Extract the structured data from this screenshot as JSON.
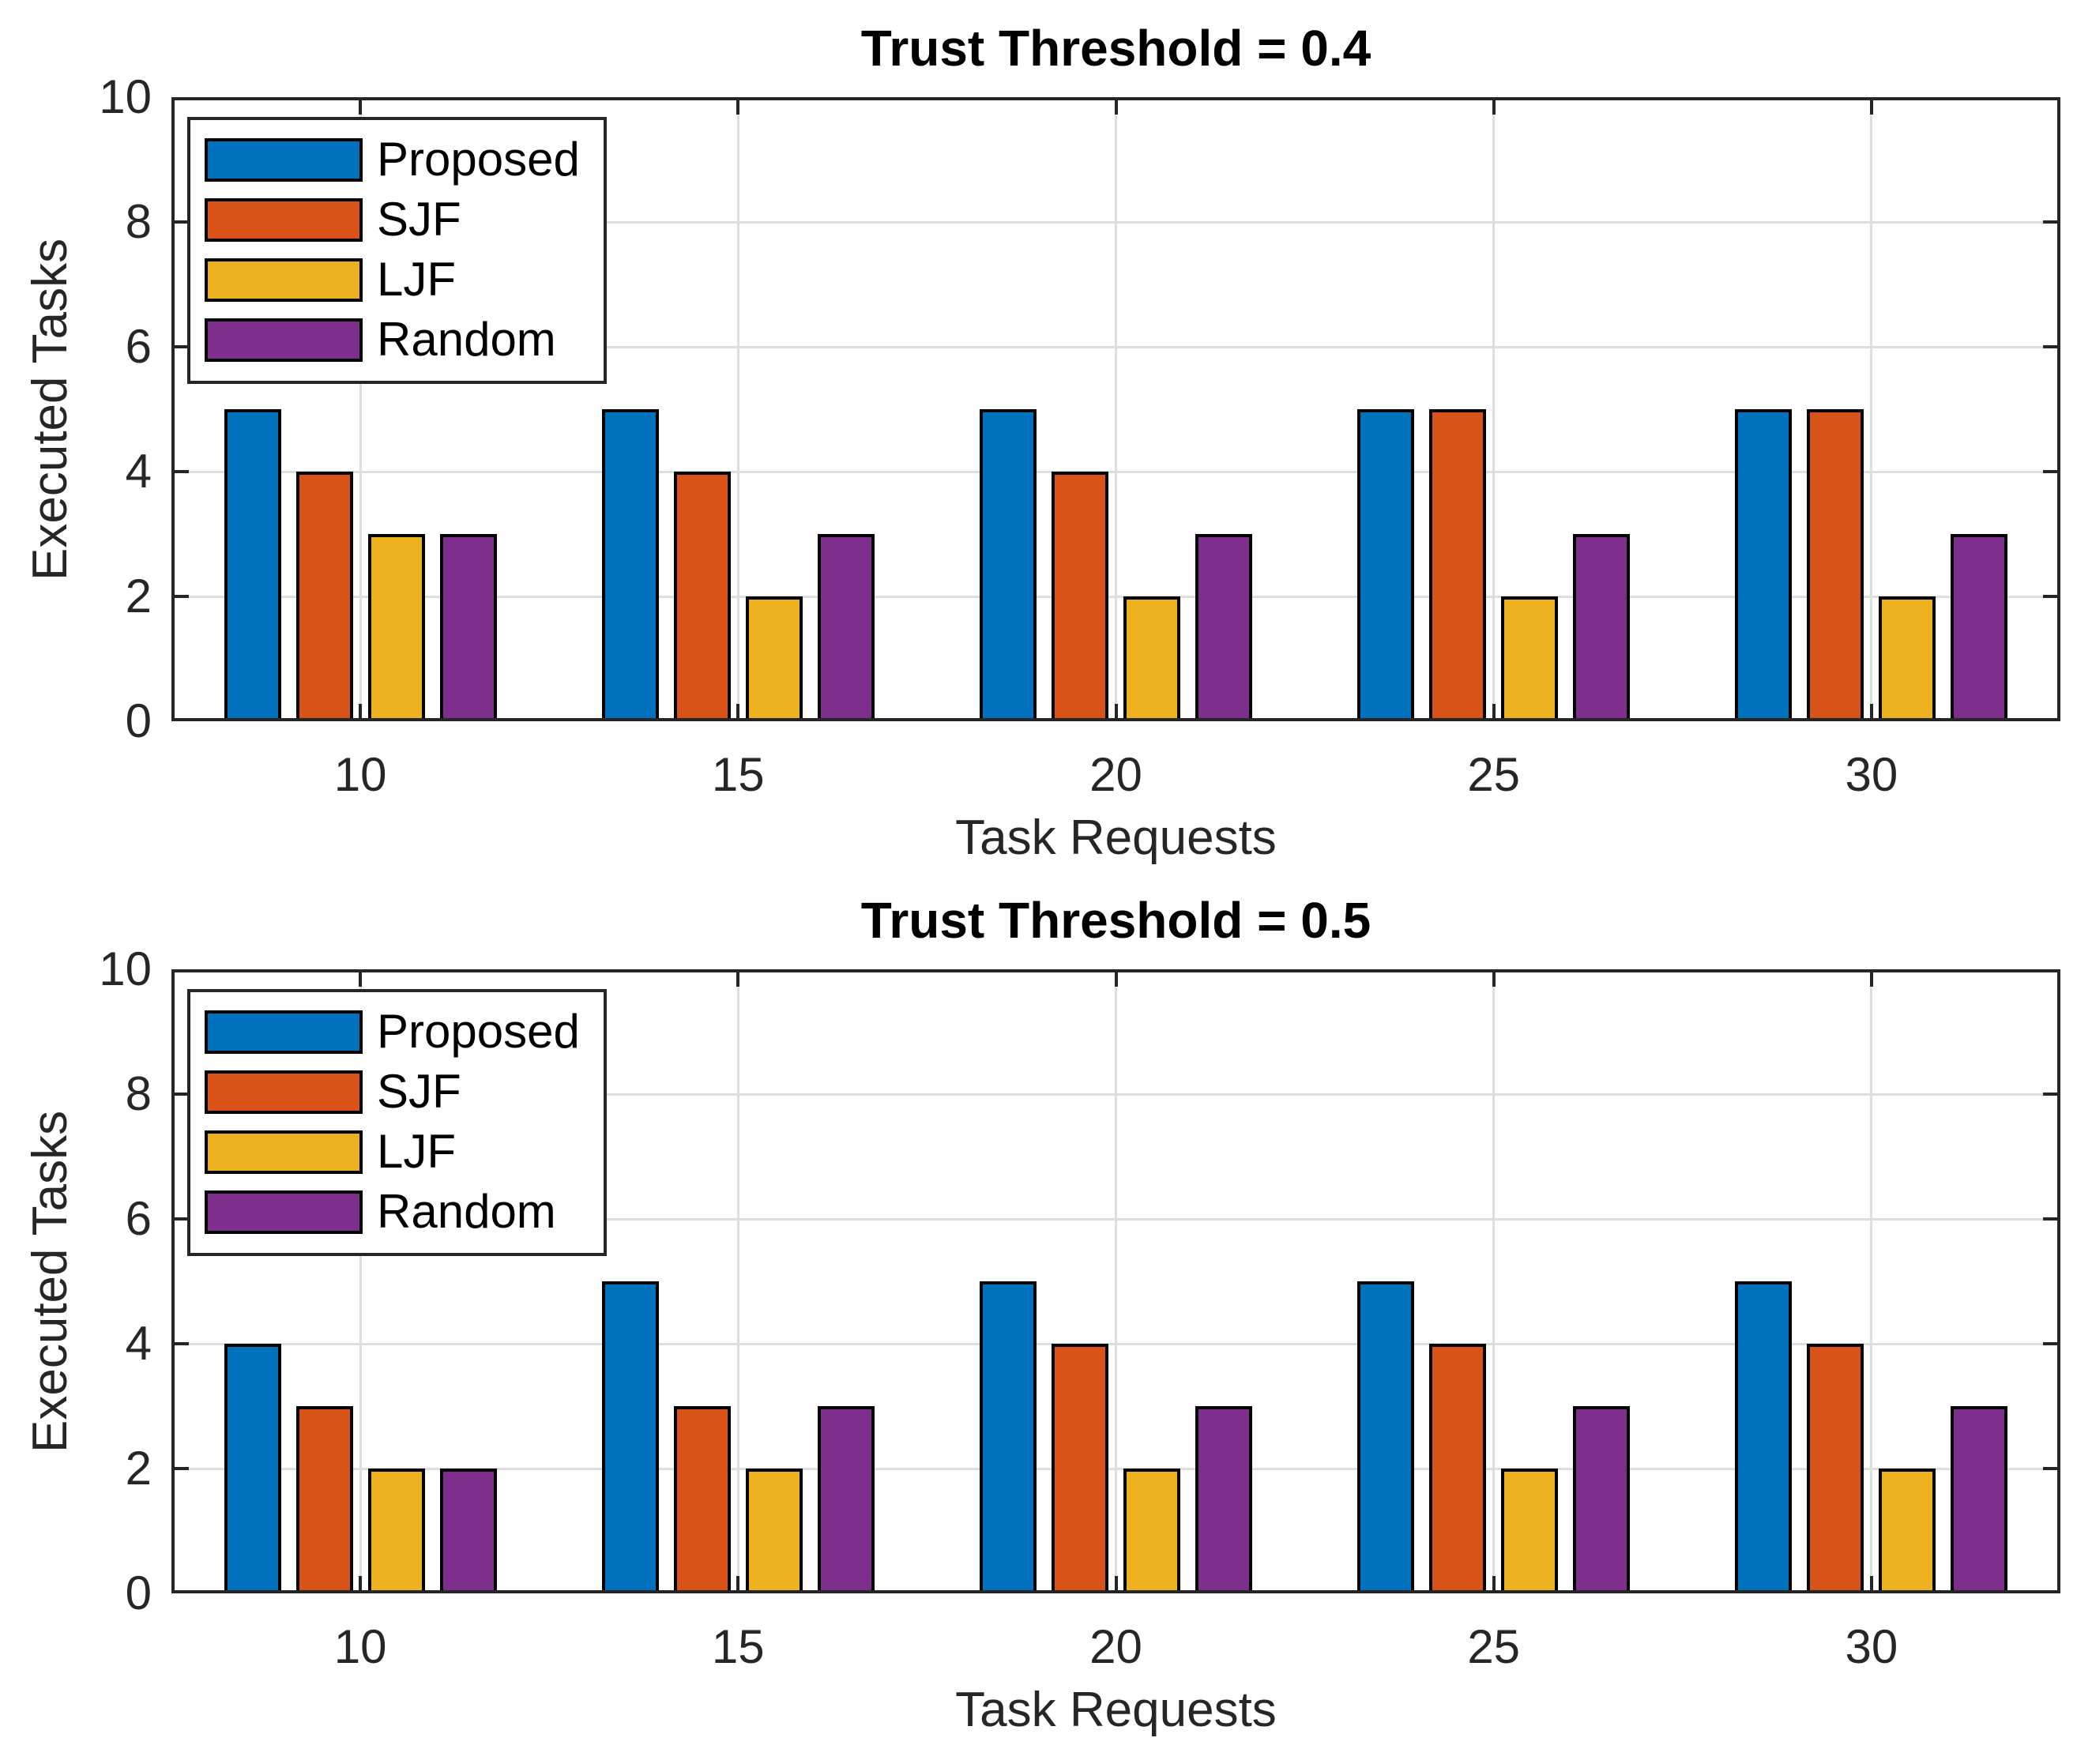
{
  "figure": {
    "background": "#ffffff",
    "axis_color": "#262626",
    "grid_color": "#dedede",
    "bar_edge_color": "#000000",
    "text_color": "#262626"
  },
  "chart_data": [
    {
      "type": "bar",
      "title": "Trust Threshold = 0.4",
      "xlabel": "Task Requests",
      "ylabel": "Executed Tasks",
      "categories": [
        "10",
        "15",
        "20",
        "25",
        "30"
      ],
      "series": [
        {
          "name": "Proposed",
          "color": "#0072BD",
          "values": [
            5,
            5,
            5,
            5,
            5
          ]
        },
        {
          "name": "SJF",
          "color": "#D95319",
          "values": [
            4,
            4,
            4,
            5,
            5
          ]
        },
        {
          "name": "LJF",
          "color": "#EDB120",
          "values": [
            3,
            2,
            2,
            2,
            2
          ]
        },
        {
          "name": "Random",
          "color": "#7E2F8E",
          "values": [
            3,
            3,
            3,
            3,
            3
          ]
        }
      ],
      "ylim": [
        0,
        10
      ],
      "yticks": [
        0,
        2,
        4,
        6,
        8,
        10
      ],
      "grid": true,
      "legend_position": "top-left"
    },
    {
      "type": "bar",
      "title": "Trust Threshold = 0.5",
      "xlabel": "Task Requests",
      "ylabel": "Executed Tasks",
      "categories": [
        "10",
        "15",
        "20",
        "25",
        "30"
      ],
      "series": [
        {
          "name": "Proposed",
          "color": "#0072BD",
          "values": [
            4,
            5,
            5,
            5,
            5
          ]
        },
        {
          "name": "SJF",
          "color": "#D95319",
          "values": [
            3,
            3,
            4,
            4,
            4
          ]
        },
        {
          "name": "LJF",
          "color": "#EDB120",
          "values": [
            2,
            2,
            2,
            2,
            2
          ]
        },
        {
          "name": "Random",
          "color": "#7E2F8E",
          "values": [
            2,
            3,
            3,
            3,
            3
          ]
        }
      ],
      "ylim": [
        0,
        10
      ],
      "yticks": [
        0,
        2,
        4,
        6,
        8,
        10
      ],
      "grid": true,
      "legend_position": "top-left"
    }
  ]
}
